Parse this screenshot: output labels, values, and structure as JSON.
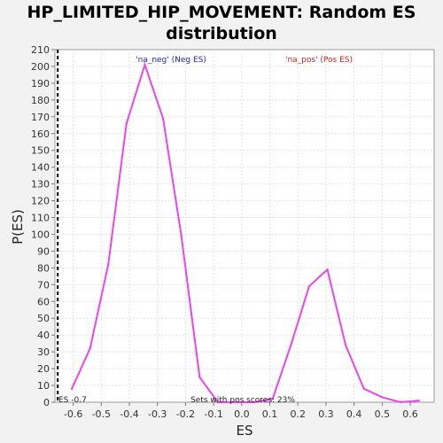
{
  "chart_data": {
    "type": "line",
    "title_line1": "HP_LIMITED_HIP_MOVEMENT: Random ES",
    "title_line2": "distribution",
    "xlabel": "ES",
    "ylabel": "P(ES)",
    "xlim": [
      -0.665,
      0.685
    ],
    "ylim": [
      0,
      210
    ],
    "x_ticks": [
      -0.6,
      -0.5,
      -0.4,
      -0.3,
      -0.2,
      -0.1,
      0.0,
      0.1,
      0.2,
      0.3,
      0.4,
      0.5,
      0.6
    ],
    "x_tick_labels": [
      "-0.6",
      "-0.5",
      "-0.4",
      "-0.3",
      "-0.2",
      "-0.1",
      "0.0",
      "0.1",
      "0.2",
      "0.3",
      "0.4",
      "0.5",
      "0.6"
    ],
    "y_ticks": [
      0,
      10,
      20,
      30,
      40,
      50,
      60,
      70,
      80,
      90,
      100,
      110,
      120,
      130,
      140,
      150,
      160,
      170,
      180,
      190,
      200,
      210
    ],
    "y_tick_labels": [
      "0",
      "10",
      "20",
      "30",
      "40",
      "50",
      "60",
      "70",
      "80",
      "90",
      "100",
      "110",
      "120",
      "130",
      "140",
      "150",
      "160",
      "170",
      "180",
      "190",
      "200",
      "210"
    ],
    "grid": true,
    "series": [
      {
        "color": "#ee44ee",
        "x": [
          -0.605,
          -0.54,
          -0.475,
          -0.41,
          -0.345,
          -0.28,
          -0.215,
          -0.15,
          -0.085,
          -0.02,
          0.045,
          0.11,
          0.175,
          0.24,
          0.305,
          0.37,
          0.435,
          0.5,
          0.565,
          0.63
        ],
        "y": [
          8,
          32,
          82,
          166,
          201,
          169,
          99,
          15,
          0,
          0,
          0,
          2,
          34,
          69,
          79,
          34,
          8,
          3,
          0,
          1
        ]
      }
    ],
    "es_marker": {
      "x": -0.655,
      "label": "ES -0.7"
    },
    "annotations": {
      "neg_label": "'na_neg' (Neg ES)",
      "neg_color": "#2222cc",
      "pos_label": "'na_pos' (Pos ES)",
      "pos_color": "#cc2222",
      "footer": "Sets with pos scores: 23%"
    }
  }
}
